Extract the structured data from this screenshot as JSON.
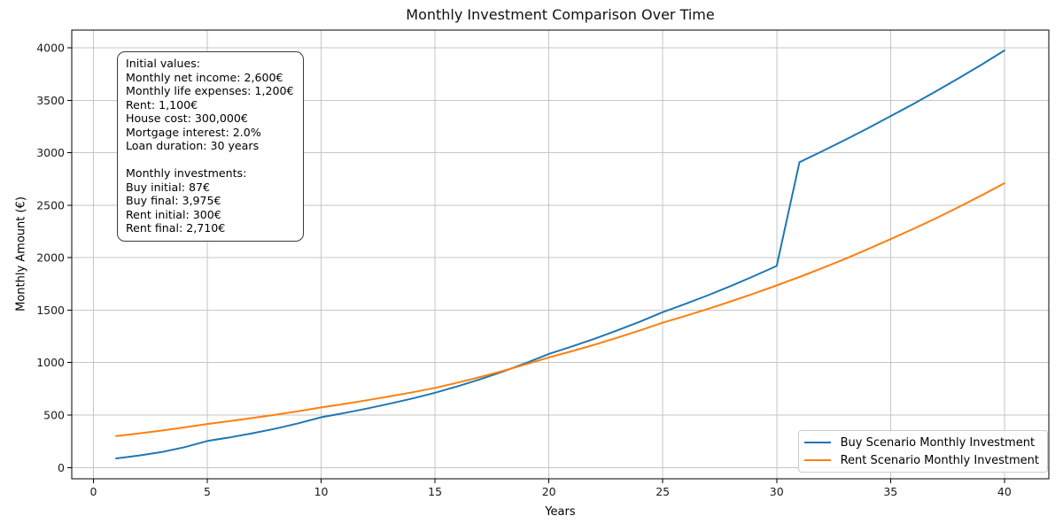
{
  "chart_data": {
    "type": "line",
    "title": "Monthly Investment Comparison Over Time",
    "xlabel": "Years",
    "ylabel": "Monthly Amount (€)",
    "grid": true,
    "background_color": "#ffffff",
    "grid_color": "#c6c6c6",
    "spine_color": "#000000",
    "xlim": [
      -0.95,
      41.95
    ],
    "ylim": [
      -107,
      4169
    ],
    "xticks": [
      0,
      5,
      10,
      15,
      20,
      25,
      30,
      35,
      40
    ],
    "yticks": [
      0,
      500,
      1000,
      1500,
      2000,
      2500,
      3000,
      3500,
      4000
    ],
    "x": [
      1,
      2,
      3,
      4,
      5,
      6,
      7,
      8,
      9,
      10,
      11,
      12,
      13,
      14,
      15,
      16,
      17,
      18,
      19,
      20,
      21,
      22,
      23,
      24,
      25,
      26,
      27,
      28,
      29,
      30,
      31,
      32,
      33,
      34,
      35,
      36,
      37,
      38,
      39,
      40
    ],
    "series": [
      {
        "name": "Buy Scenario Monthly Investment",
        "color": "#1f77b4",
        "values": [
          87,
          114,
          148,
          194,
          253,
          288,
          327,
          371,
          422,
          479,
          519,
          562,
          608,
          658,
          713,
          775,
          843,
          916,
          996,
          1083,
          1153,
          1227,
          1307,
          1391,
          1481,
          1560,
          1643,
          1731,
          1824,
          1921,
          2910,
          3014,
          3122,
          3233,
          3348,
          3465,
          3586,
          3711,
          3840,
          3975
        ]
      },
      {
        "name": "Rent Scenario Monthly Investment",
        "color": "#ff7f0e",
        "values": [
          300,
          325,
          353,
          383,
          415,
          443,
          472,
          504,
          537,
          573,
          606,
          641,
          678,
          717,
          759,
          810,
          864,
          922,
          984,
          1049,
          1108,
          1171,
          1237,
          1307,
          1381,
          1446,
          1513,
          1584,
          1658,
          1736,
          1816,
          1901,
          1988,
          2081,
          2177,
          2275,
          2376,
          2483,
          2594,
          2710
        ]
      }
    ],
    "legend": {
      "position": "lower right",
      "items": [
        {
          "label": "Buy Scenario Monthly Investment",
          "color": "#1f77b4"
        },
        {
          "label": "Rent Scenario Monthly Investment",
          "color": "#ff7f0e"
        }
      ]
    },
    "annotation": {
      "lines": [
        "Initial values:",
        "Monthly net income: 2,600€",
        "Monthly life expenses: 1,200€",
        "Rent: 1,100€",
        "House cost: 300,000€",
        "Mortgage interest: 2.0%",
        "Loan duration: 30 years",
        "",
        "Monthly investments:",
        "Buy initial: 87€",
        "Buy final: 3,975€",
        "Rent initial: 300€",
        "Rent final: 2,710€"
      ]
    }
  }
}
